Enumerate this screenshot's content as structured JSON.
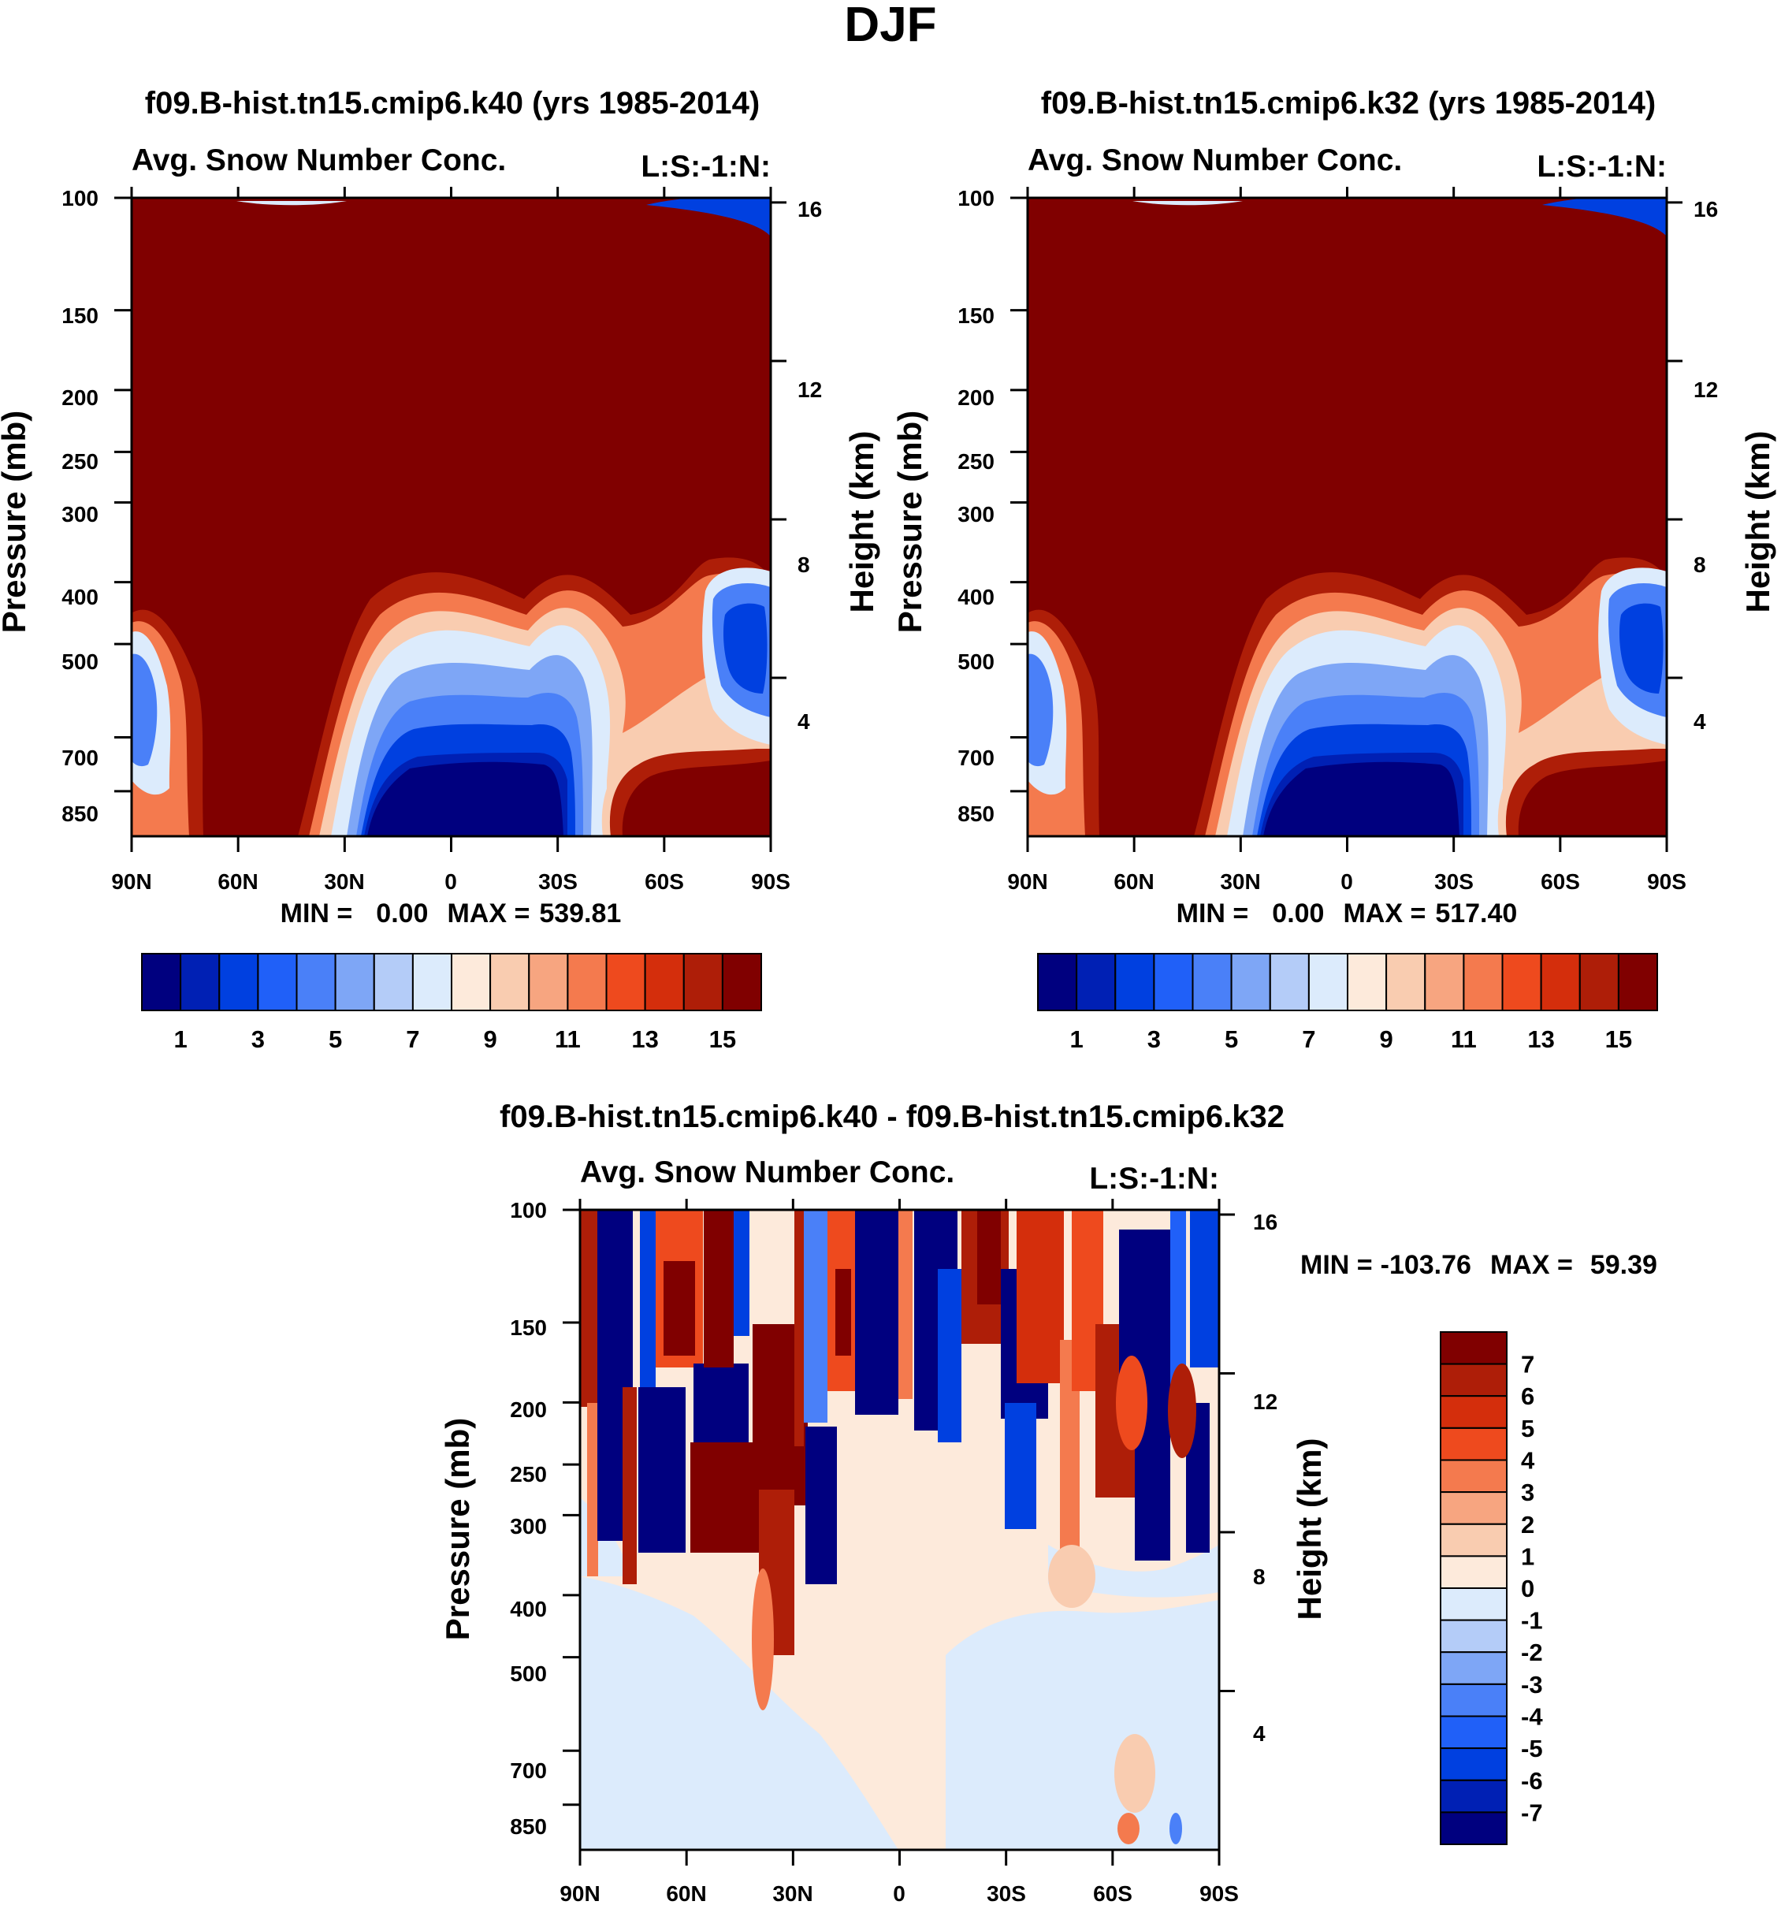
{
  "page_title": "DJF",
  "chart_data": [
    {
      "type": "heatmap",
      "id": "k40",
      "title": "f09.B-hist.tn15.cmip6.k40 (yrs 1985-2014)",
      "subtitle_left": "Avg. Snow Number Conc.",
      "subtitle_right": "L:S:-1:N:",
      "ylabel": "Pressure (mb)",
      "ylabel_right": "Height (km)",
      "x_ticks": [
        "90N",
        "60N",
        "30N",
        "0",
        "30S",
        "60S",
        "90S"
      ],
      "y_ticks": [
        "100",
        "150",
        "200",
        "250",
        "300",
        "400",
        "500",
        "700",
        "850"
      ],
      "y2_ticks": [
        "16",
        "12",
        "8",
        "4"
      ],
      "min_label": "MIN =",
      "min_value": "0.00",
      "max_label": "MAX =",
      "max_value": "539.81",
      "colorbar_labels": [
        "1",
        "3",
        "5",
        "7",
        "9",
        "11",
        "13",
        "15"
      ],
      "ylim_mb": [
        100,
        1000
      ],
      "xlim_deg": [
        90,
        -90
      ]
    },
    {
      "type": "heatmap",
      "id": "k32",
      "title": "f09.B-hist.tn15.cmip6.k32 (yrs 1985-2014)",
      "subtitle_left": "Avg. Snow Number Conc.",
      "subtitle_right": "L:S:-1:N:",
      "ylabel": "Pressure (mb)",
      "ylabel_right": "Height (km)",
      "x_ticks": [
        "90N",
        "60N",
        "30N",
        "0",
        "30S",
        "60S",
        "90S"
      ],
      "y_ticks": [
        "100",
        "150",
        "200",
        "250",
        "300",
        "400",
        "500",
        "700",
        "850"
      ],
      "y2_ticks": [
        "16",
        "12",
        "8",
        "4"
      ],
      "min_label": "MIN =",
      "min_value": "0.00",
      "max_label": "MAX =",
      "max_value": "517.40",
      "colorbar_labels": [
        "1",
        "3",
        "5",
        "7",
        "9",
        "11",
        "13",
        "15"
      ],
      "ylim_mb": [
        100,
        1000
      ],
      "xlim_deg": [
        90,
        -90
      ]
    },
    {
      "type": "heatmap",
      "id": "diff",
      "title": "f09.B-hist.tn15.cmip6.k40 - f09.B-hist.tn15.cmip6.k32",
      "subtitle_left": "Avg. Snow Number Conc.",
      "subtitle_right": "L:S:-1:N:",
      "ylabel": "Pressure (mb)",
      "ylabel_right": "Height (km)",
      "x_ticks": [
        "90N",
        "60N",
        "30N",
        "0",
        "30S",
        "60S",
        "90S"
      ],
      "y_ticks": [
        "100",
        "150",
        "200",
        "250",
        "300",
        "400",
        "500",
        "700",
        "850"
      ],
      "y2_ticks": [
        "16",
        "12",
        "8",
        "4"
      ],
      "min_label": "MIN =",
      "min_value": "-103.76",
      "max_label": "MAX =",
      "max_value": "59.39",
      "colorbar_labels": [
        "7",
        "6",
        "5",
        "4",
        "3",
        "2",
        "1",
        "0",
        "-1",
        "-2",
        "-3",
        "-4",
        "-5",
        "-6",
        "-7"
      ],
      "ylim_mb": [
        100,
        1000
      ],
      "xlim_deg": [
        90,
        -90
      ]
    }
  ],
  "colors": {
    "diverging_16": [
      "#00007f",
      "#0020b4",
      "#0040e0",
      "#2060f8",
      "#4a80f8",
      "#7ea6f6",
      "#b4ccf8",
      "#dcebfc",
      "#fdeadb",
      "#f9ccb0",
      "#f7a580",
      "#f47a4e",
      "#ee4a1e",
      "#d42e0c",
      "#ae1e08",
      "#800000"
    ]
  }
}
